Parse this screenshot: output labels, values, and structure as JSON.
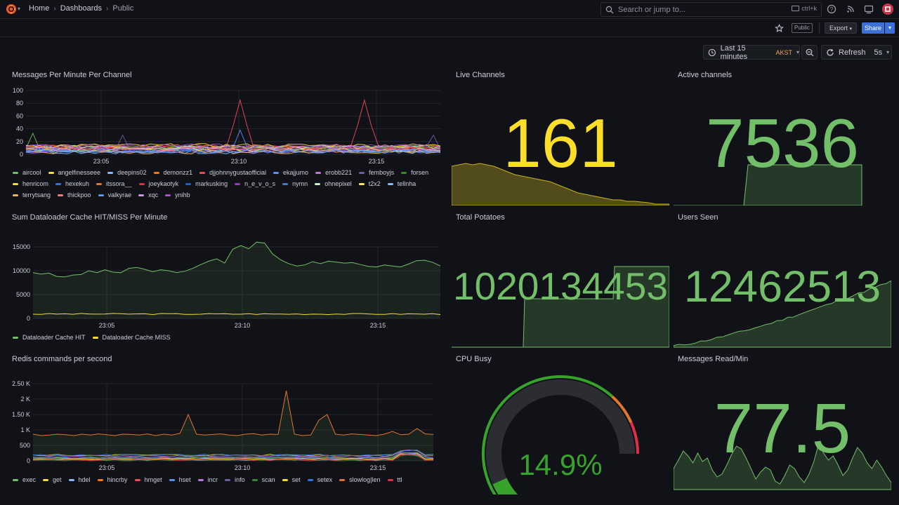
{
  "breadcrumb": [
    "Home",
    "Dashboards",
    "Public"
  ],
  "search": {
    "placeholder": "Search or jump to...",
    "shortcut": "ctrl+k"
  },
  "toolbar": {
    "public_tag": "Public",
    "export_label": "Export",
    "share_label": "Share"
  },
  "timepicker": {
    "range": "Last 15 minutes",
    "timezone": "AKST",
    "refresh_label": "Refresh",
    "refresh_interval": "5s"
  },
  "colors": {
    "green": "#73bf69",
    "yellow": "#fade2a",
    "red": "#f2495c",
    "accent": "#3d71d9"
  },
  "panels": {
    "messages_per_minute": {
      "title": "Messages Per Minute Per Channel",
      "yticks": [
        "100",
        "80",
        "60",
        "40",
        "20",
        "0"
      ],
      "xticks": [
        "23:05",
        "23:10",
        "23:15"
      ],
      "legend": [
        {
          "name": "aircool",
          "color": "#73bf69"
        },
        {
          "name": "angelfinesseee",
          "color": "#fade2a"
        },
        {
          "name": "deepins02",
          "color": "#8ab8ff"
        },
        {
          "name": "demonzz1",
          "color": "#ff780a"
        },
        {
          "name": "djjohnnygustaofficial",
          "color": "#f2495c"
        },
        {
          "name": "ekajjumo",
          "color": "#5794f2"
        },
        {
          "name": "erobb221",
          "color": "#b877d9"
        },
        {
          "name": "femboyjs",
          "color": "#705da0"
        },
        {
          "name": "forsen",
          "color": "#37872d"
        },
        {
          "name": "henricom",
          "color": "#fade2a"
        },
        {
          "name": "hexekuh",
          "color": "#3274d9"
        },
        {
          "name": "itssora__",
          "color": "#e0752d"
        },
        {
          "name": "joeykaotyk",
          "color": "#e02f44"
        },
        {
          "name": "markusking",
          "color": "#1f60c4"
        },
        {
          "name": "n_e_v_o_s",
          "color": "#8f3bb8"
        },
        {
          "name": "nymn",
          "color": "#447ebc"
        },
        {
          "name": "ohnepixel",
          "color": "#c8f2c2"
        },
        {
          "name": "t2x2",
          "color": "#ffee52"
        },
        {
          "name": "tellnha",
          "color": "#8ab8ff"
        },
        {
          "name": "terrytsang",
          "color": "#ffb357"
        },
        {
          "name": "thickpoo",
          "color": "#ff7383"
        },
        {
          "name": "valkyrae",
          "color": "#5794f2"
        },
        {
          "name": "xqc",
          "color": "#ca95e5"
        },
        {
          "name": "ynihb",
          "color": "#a352cc"
        }
      ]
    },
    "live_channels": {
      "title": "Live Channels",
      "value": "161"
    },
    "active_channels": {
      "title": "Active channels",
      "value": "7536"
    },
    "dataloader": {
      "title": "Sum Dataloader Cache HIT/MISS Per Minute",
      "yticks": [
        "15000",
        "10000",
        "5000",
        "0"
      ],
      "xticks": [
        "23:05",
        "23:10",
        "23:15"
      ],
      "legend": [
        {
          "name": "Dataloader Cache HIT",
          "color": "#73bf69"
        },
        {
          "name": "Dataloader Cache MISS",
          "color": "#fade2a"
        }
      ]
    },
    "total_potatoes": {
      "title": "Total Potatoes",
      "value": "1020134453"
    },
    "users_seen": {
      "title": "Users Seen",
      "value": "12462513"
    },
    "redis": {
      "title": "Redis commands per second",
      "yticks": [
        "2.50 K",
        "2 K",
        "1.50 K",
        "1 K",
        "500",
        "0"
      ],
      "xticks": [
        "23:05",
        "23:10",
        "23:15"
      ],
      "legend": [
        {
          "name": "exec",
          "color": "#73bf69"
        },
        {
          "name": "get",
          "color": "#fade2a"
        },
        {
          "name": "hdel",
          "color": "#8ab8ff"
        },
        {
          "name": "hincrby",
          "color": "#ff780a"
        },
        {
          "name": "hmget",
          "color": "#f2495c"
        },
        {
          "name": "hset",
          "color": "#5794f2"
        },
        {
          "name": "incr",
          "color": "#b877d9"
        },
        {
          "name": "info",
          "color": "#705da0"
        },
        {
          "name": "scan",
          "color": "#37872d"
        },
        {
          "name": "set",
          "color": "#fade2a"
        },
        {
          "name": "setex",
          "color": "#3274d9"
        },
        {
          "name": "slowlog|len",
          "color": "#e0752d"
        },
        {
          "name": "ttl",
          "color": "#e02f44"
        }
      ]
    },
    "cpu_busy": {
      "title": "CPU Busy",
      "value": "14.9%",
      "percent": 14.9
    },
    "messages_read": {
      "title": "Messages Read/Min",
      "value": "77.5"
    }
  }
}
